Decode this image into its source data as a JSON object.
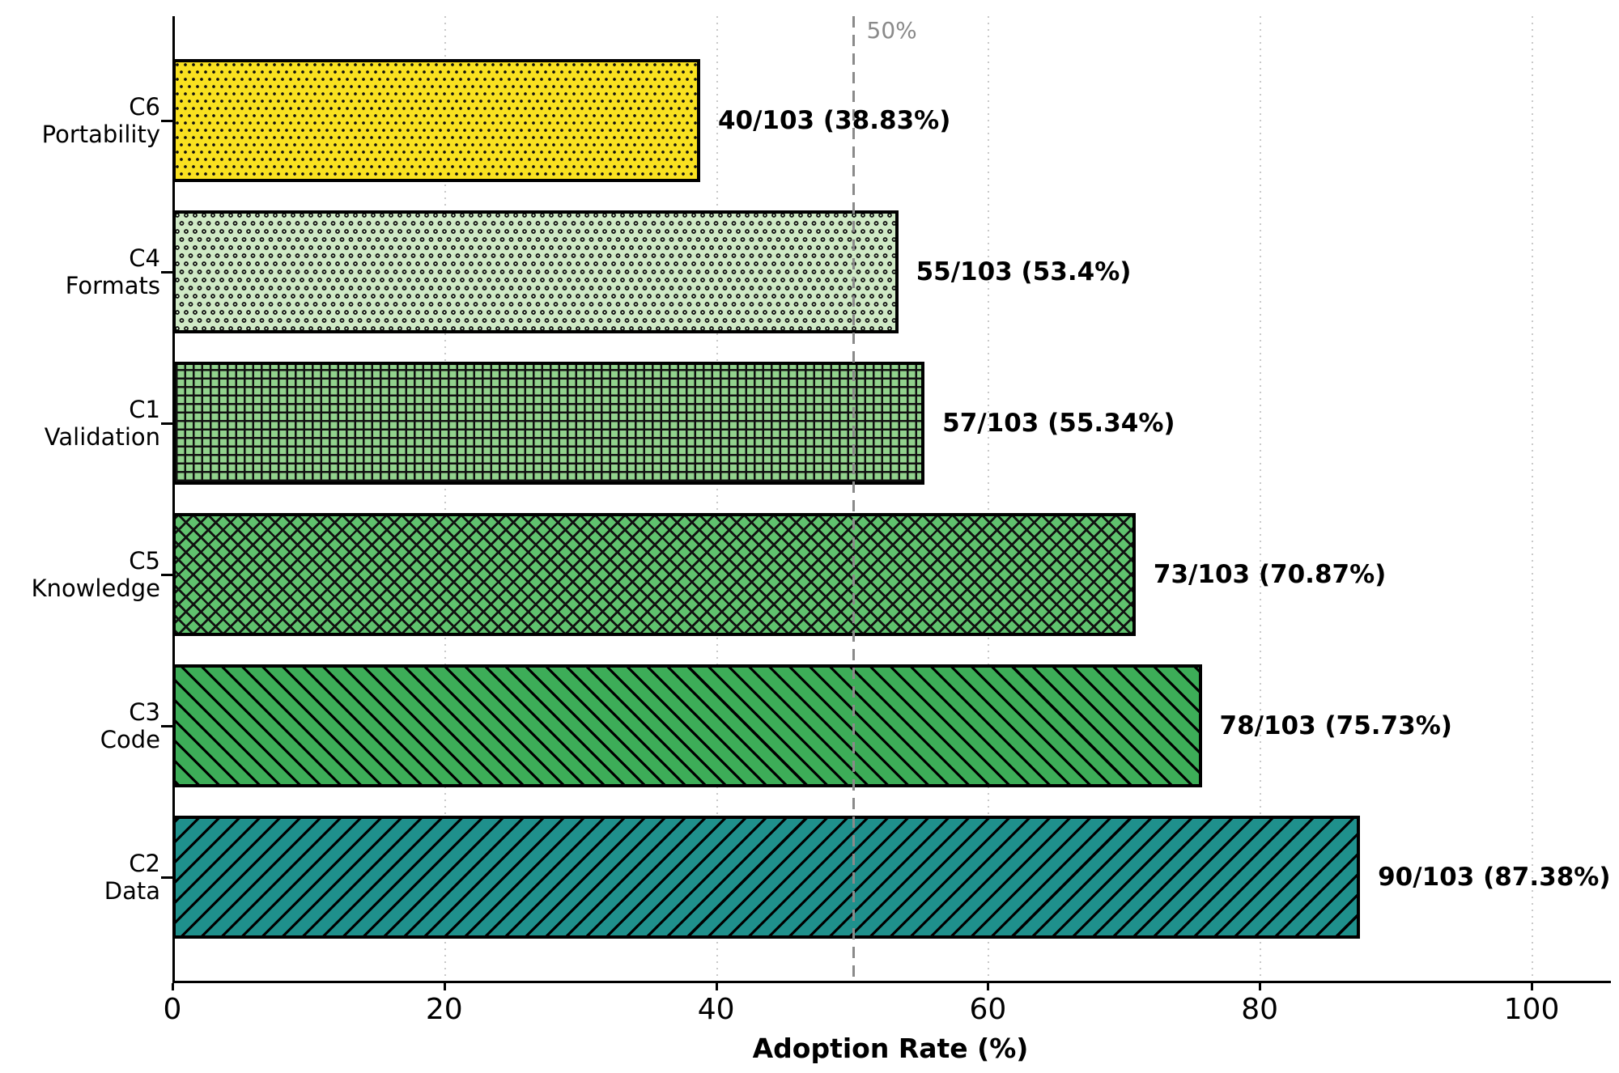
{
  "chart_data": {
    "type": "bar",
    "orientation": "horizontal",
    "xlabel": "Adoption Rate (%)",
    "xlim": [
      0,
      105.8
    ],
    "x_ticks": [
      0,
      20,
      40,
      60,
      80,
      100
    ],
    "grid": "vertical-dotted",
    "reference_line": {
      "value": 50,
      "label": "50%",
      "color": "#8a8a8a",
      "style": "dashed"
    },
    "denominator": 103,
    "bars": [
      {
        "category_line1": "C6",
        "category_line2": "Portability",
        "count": 40,
        "total": 103,
        "percent": 38.83,
        "value_label": "40/103 (38.83%)",
        "color": "#f9e120",
        "hatch": "dots-small"
      },
      {
        "category_line1": "C4",
        "category_line2": "Formats",
        "count": 55,
        "total": 103,
        "percent": 53.4,
        "value_label": "55/103 (53.4%)",
        "color": "#cfe9c5",
        "hatch": "circles"
      },
      {
        "category_line1": "C1",
        "category_line2": "Validation",
        "count": 57,
        "total": 103,
        "percent": 55.34,
        "value_label": "57/103 (55.34%)",
        "color": "#92d28d",
        "hatch": "grid"
      },
      {
        "category_line1": "C5",
        "category_line2": "Knowledge",
        "count": 73,
        "total": 103,
        "percent": 70.87,
        "value_label": "73/103 (70.87%)",
        "color": "#60c26e",
        "hatch": "cross-diagonal"
      },
      {
        "category_line1": "C3",
        "category_line2": "Code",
        "count": 78,
        "total": 103,
        "percent": 75.73,
        "value_label": "78/103 (75.73%)",
        "color": "#3dad58",
        "hatch": "diagonal-backslash"
      },
      {
        "category_line1": "C2",
        "category_line2": "Data",
        "count": 90,
        "total": 103,
        "percent": 87.38,
        "value_label": "90/103 (87.38%)",
        "color": "#1f908c",
        "hatch": "diagonal-slash"
      }
    ]
  }
}
